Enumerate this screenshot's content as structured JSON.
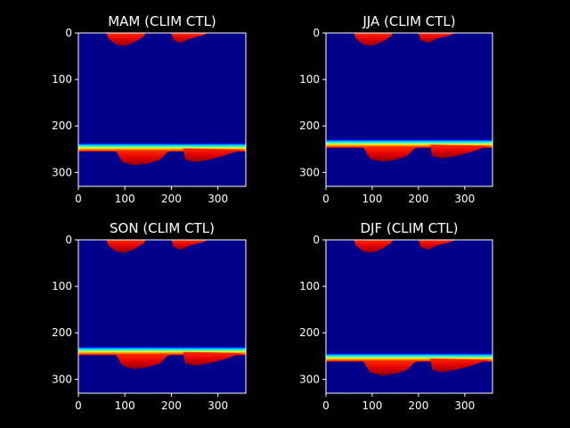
{
  "colors": {
    "background": "#000000",
    "ocean": "#00008b",
    "colormap": [
      "#00007f",
      "#0000ff",
      "#007fff",
      "#00ffff",
      "#7fff7f",
      "#ffff00",
      "#ff7f00",
      "#ff0000",
      "#7f0000"
    ]
  },
  "chart_data": [
    {
      "type": "heatmap",
      "title": "MAM (CLIM CTL)",
      "xlim": [
        0,
        360
      ],
      "ylim": [
        330,
        0
      ],
      "xticks": [
        0,
        100,
        200,
        300
      ],
      "yticks": [
        0,
        100,
        200,
        300
      ],
      "xtick_labels": [
        "0",
        "100",
        "200",
        "300"
      ],
      "ytick_labels": [
        "0",
        "100",
        "200",
        "300"
      ],
      "band_edge_y": 243,
      "band_edge_note": "high values along the sea-ice edge",
      "land_masses": [
        "north-west",
        "north-east",
        "south-west",
        "south-east"
      ]
    },
    {
      "type": "heatmap",
      "title": "JJA (CLIM CTL)",
      "xlim": [
        0,
        360
      ],
      "ylim": [
        330,
        0
      ],
      "xticks": [
        0,
        100,
        200,
        300
      ],
      "yticks": [
        0,
        100,
        200,
        300
      ],
      "xtick_labels": [
        "0",
        "100",
        "200",
        "300"
      ],
      "ytick_labels": [
        "0",
        "100",
        "200",
        "300"
      ],
      "band_edge_y": 235,
      "land_masses": [
        "north-west",
        "north-east",
        "south-west",
        "south-east"
      ]
    },
    {
      "type": "heatmap",
      "title": "SON (CLIM CTL)",
      "xlim": [
        0,
        360
      ],
      "ylim": [
        330,
        0
      ],
      "xticks": [
        0,
        100,
        200,
        300
      ],
      "yticks": [
        0,
        100,
        200,
        300
      ],
      "xtick_labels": [
        "0",
        "100",
        "200",
        "300"
      ],
      "ytick_labels": [
        "0",
        "100",
        "200",
        "300"
      ],
      "band_edge_y": 236,
      "land_masses": [
        "north-west",
        "north-east",
        "south-west",
        "south-east"
      ]
    },
    {
      "type": "heatmap",
      "title": "DJF (CLIM CTL)",
      "xlim": [
        0,
        360
      ],
      "ylim": [
        330,
        0
      ],
      "xticks": [
        0,
        100,
        200,
        300
      ],
      "yticks": [
        0,
        100,
        200,
        300
      ],
      "xtick_labels": [
        "0",
        "100",
        "200",
        "300"
      ],
      "ytick_labels": [
        "0",
        "100",
        "200",
        "300"
      ],
      "band_edge_y": 250,
      "land_masses": [
        "north-west",
        "north-east",
        "south-west",
        "south-east"
      ]
    }
  ]
}
